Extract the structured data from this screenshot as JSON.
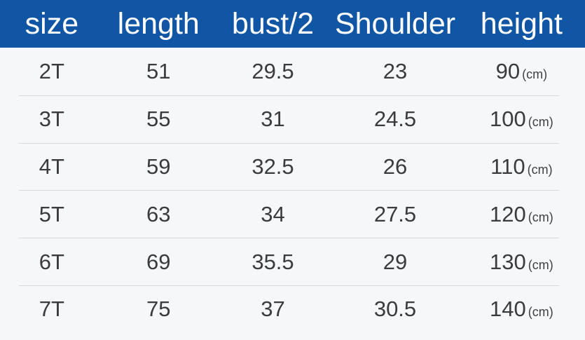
{
  "chart_data": {
    "type": "table",
    "columns": [
      "size",
      "length",
      "bust/2",
      "Shoulder",
      "height"
    ],
    "unit": "cm",
    "rows": [
      [
        "2T",
        51,
        29.5,
        23,
        90
      ],
      [
        "3T",
        55,
        31,
        24.5,
        100
      ],
      [
        "4T",
        59,
        32.5,
        26,
        110
      ],
      [
        "5T",
        63,
        34,
        27.5,
        120
      ],
      [
        "6T",
        69,
        35.5,
        29,
        130
      ],
      [
        "7T",
        75,
        37,
        30.5,
        140
      ]
    ]
  },
  "table": {
    "columns": [
      "size",
      "length",
      "bust/2",
      "Shoulder",
      "height"
    ],
    "unit_suffix": "(cm)",
    "rows": [
      {
        "size": "2T",
        "length": "51",
        "bust_half": "29.5",
        "shoulder": "23",
        "height": "90"
      },
      {
        "size": "3T",
        "length": "55",
        "bust_half": "31",
        "shoulder": "24.5",
        "height": "100"
      },
      {
        "size": "4T",
        "length": "59",
        "bust_half": "32.5",
        "shoulder": "26",
        "height": "110"
      },
      {
        "size": "5T",
        "length": "63",
        "bust_half": "34",
        "shoulder": "27.5",
        "height": "120"
      },
      {
        "size": "6T",
        "length": "69",
        "bust_half": "35.5",
        "shoulder": "29",
        "height": "130"
      },
      {
        "size": "7T",
        "length": "75",
        "bust_half": "37",
        "shoulder": "30.5",
        "height": "140"
      }
    ]
  },
  "colors": {
    "header_bg": "#1155a5",
    "header_text": "#ffffff",
    "body_bg": "#f6f7f9",
    "row_text": "#3b3b3d",
    "divider": "#d9d9dd"
  }
}
